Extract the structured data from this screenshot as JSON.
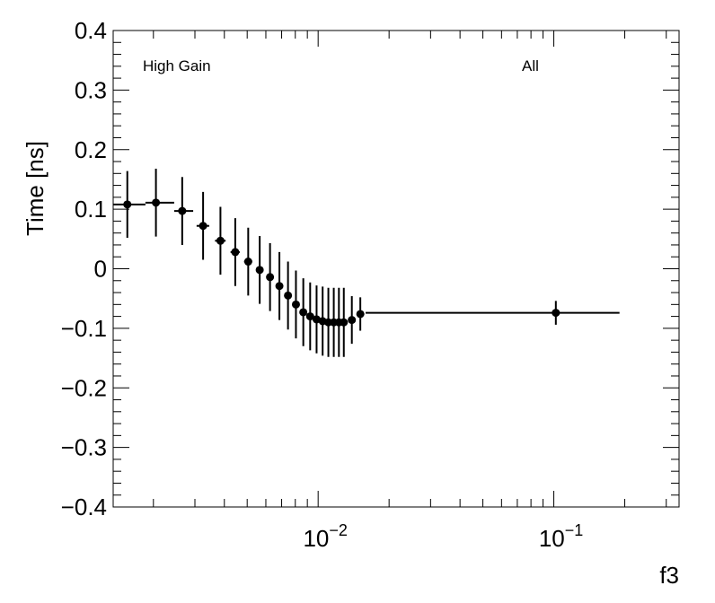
{
  "chart_data": {
    "type": "scatter",
    "title": "",
    "xlabel": "f3",
    "ylabel": "Time [ns]",
    "x_scale": "log",
    "xlim": [
      0.00135,
      0.34
    ],
    "ylim": [
      -0.4,
      0.4
    ],
    "grid": false,
    "legend": "none",
    "y_ticks": [
      {
        "value": 0.4,
        "label": "0.4"
      },
      {
        "value": 0.3,
        "label": "0.3"
      },
      {
        "value": 0.2,
        "label": "0.2"
      },
      {
        "value": 0.1,
        "label": "0.1"
      },
      {
        "value": 0.0,
        "label": "0"
      },
      {
        "value": -0.1,
        "label": "−0.1"
      },
      {
        "value": -0.2,
        "label": "−0.2"
      },
      {
        "value": -0.3,
        "label": "−0.3"
      },
      {
        "value": -0.4,
        "label": "−0.4"
      }
    ],
    "x_ticks": [
      {
        "value": 0.01,
        "base": "10",
        "exp": "−2"
      },
      {
        "value": 0.1,
        "base": "10",
        "exp": "−1"
      }
    ],
    "annotations": [
      {
        "text": "High Gain",
        "position": "top-left"
      },
      {
        "text": "All",
        "position": "top-right"
      }
    ],
    "series": [
      {
        "points": [
          {
            "x": 0.00155,
            "xlo": 0.00135,
            "xhi": 0.00185,
            "y": 0.108,
            "yerr": 0.056
          },
          {
            "x": 0.00205,
            "xlo": 0.00185,
            "xhi": 0.00245,
            "y": 0.111,
            "yerr": 0.057
          },
          {
            "x": 0.00265,
            "xlo": 0.00245,
            "xhi": 0.00295,
            "y": 0.097,
            "yerr": 0.057
          },
          {
            "x": 0.00325,
            "xlo": 0.00305,
            "xhi": 0.00345,
            "y": 0.072,
            "yerr": 0.057
          },
          {
            "x": 0.00385,
            "xlo": 0.00365,
            "xhi": 0.00405,
            "y": 0.047,
            "yerr": 0.057
          },
          {
            "x": 0.00445,
            "xlo": 0.00425,
            "xhi": 0.00465,
            "y": 0.028,
            "yerr": 0.057
          },
          {
            "x": 0.00505,
            "xlo": 0.00485,
            "xhi": 0.00525,
            "y": 0.012,
            "yerr": 0.057
          },
          {
            "x": 0.00565,
            "xlo": 0.00545,
            "xhi": 0.00585,
            "y": -0.002,
            "yerr": 0.057
          },
          {
            "x": 0.00625,
            "xlo": 0.00605,
            "xhi": 0.00645,
            "y": -0.014,
            "yerr": 0.057
          },
          {
            "x": 0.00685,
            "xlo": 0.00665,
            "xhi": 0.00705,
            "y": -0.029,
            "yerr": 0.057
          },
          {
            "x": 0.00745,
            "xlo": 0.00725,
            "xhi": 0.00765,
            "y": -0.045,
            "yerr": 0.057
          },
          {
            "x": 0.00805,
            "xlo": 0.00785,
            "xhi": 0.00825,
            "y": -0.06,
            "yerr": 0.057
          },
          {
            "x": 0.00865,
            "xlo": 0.00845,
            "xhi": 0.00885,
            "y": -0.073,
            "yerr": 0.057
          },
          {
            "x": 0.00925,
            "xlo": 0.00905,
            "xhi": 0.00945,
            "y": -0.08,
            "yerr": 0.057
          },
          {
            "x": 0.00985,
            "xlo": 0.00965,
            "xhi": 0.01005,
            "y": -0.085,
            "yerr": 0.057
          },
          {
            "x": 0.01045,
            "xlo": 0.01025,
            "xhi": 0.01065,
            "y": -0.088,
            "yerr": 0.058
          },
          {
            "x": 0.01105,
            "xlo": 0.01085,
            "xhi": 0.01125,
            "y": -0.09,
            "yerr": 0.058
          },
          {
            "x": 0.01165,
            "xlo": 0.01145,
            "xhi": 0.01185,
            "y": -0.09,
            "yerr": 0.058
          },
          {
            "x": 0.01225,
            "xlo": 0.01205,
            "xhi": 0.01245,
            "y": -0.09,
            "yerr": 0.058
          },
          {
            "x": 0.01285,
            "xlo": 0.01265,
            "xhi": 0.01305,
            "y": -0.09,
            "yerr": 0.058
          },
          {
            "x": 0.0139,
            "xlo": 0.0134,
            "xhi": 0.0144,
            "y": -0.086,
            "yerr": 0.04
          },
          {
            "x": 0.0151,
            "xlo": 0.0147,
            "xhi": 0.0157,
            "y": -0.076,
            "yerr": 0.028
          },
          {
            "x": 0.102,
            "xlo": 0.0159,
            "xhi": 0.19,
            "y": -0.074,
            "yerr": 0.02
          }
        ]
      }
    ]
  }
}
